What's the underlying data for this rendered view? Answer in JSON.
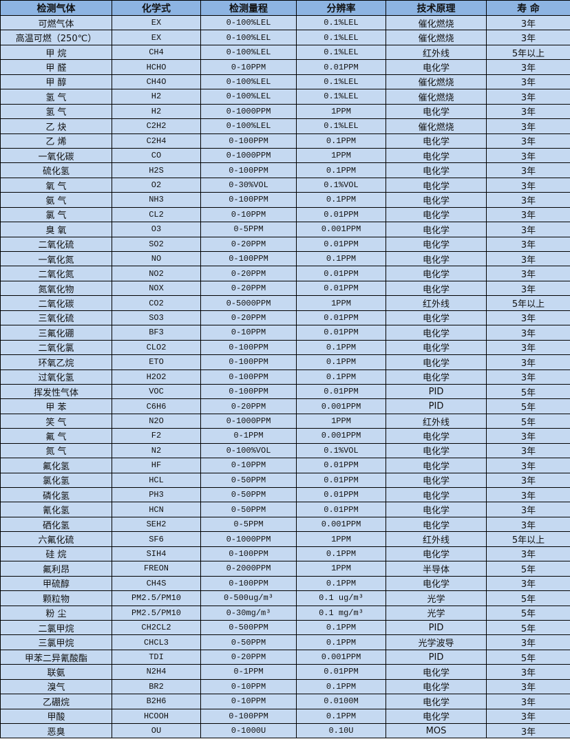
{
  "colors": {
    "header_bg": "#8db4e2",
    "row_bg": "#c5d9f1",
    "border": "#000000"
  },
  "table": {
    "headers": [
      "检测气体",
      "化学式",
      "检测量程",
      "分辨率",
      "技术原理",
      "寿 命"
    ],
    "rows": [
      [
        "可燃气体",
        "EX",
        "0-100%LEL",
        "0.1%LEL",
        "催化燃烧",
        "3年"
      ],
      [
        "高温可燃（250℃）",
        "EX",
        "0-100%LEL",
        "0.1%LEL",
        "催化燃烧",
        "3年"
      ],
      [
        "甲 烷",
        "CH4",
        "0-100%LEL",
        "0.1%LEL",
        "红外线",
        "5年以上"
      ],
      [
        "甲 醛",
        "HCHO",
        "0-10PPM",
        "0.01PPM",
        "电化学",
        "3年"
      ],
      [
        "甲 醇",
        "CH4O",
        "0-100%LEL",
        "0.1%LEL",
        "催化燃烧",
        "3年"
      ],
      [
        "氢 气",
        "H2",
        "0-100%LEL",
        "0.1%LEL",
        "催化燃烧",
        "3年"
      ],
      [
        "氢 气",
        "H2",
        "0-1000PPM",
        "1PPM",
        "电化学",
        "3年"
      ],
      [
        "乙 炔",
        "C2H2",
        "0-100%LEL",
        "0.1%LEL",
        "催化燃烧",
        "3年"
      ],
      [
        "乙 烯",
        "C2H4",
        "0-100PPM",
        "0.1PPM",
        "电化学",
        "3年"
      ],
      [
        "一氧化碳",
        "CO",
        "0-1000PPM",
        "1PPM",
        "电化学",
        "3年"
      ],
      [
        "硫化氢",
        "H2S",
        "0-100PPM",
        "0.1PPM",
        "电化学",
        "3年"
      ],
      [
        "氧 气",
        "O2",
        "0-30%VOL",
        "0.1%VOL",
        "电化学",
        "3年"
      ],
      [
        "氨 气",
        "NH3",
        "0-100PPM",
        "0.1PPM",
        "电化学",
        "3年"
      ],
      [
        "氯 气",
        "CL2",
        "0-10PPM",
        "0.01PPM",
        "电化学",
        "3年"
      ],
      [
        "臭 氧",
        "O3",
        "0-5PPM",
        "0.001PPM",
        "电化学",
        "3年"
      ],
      [
        "二氧化硫",
        "SO2",
        "0-20PPM",
        "0.01PPM",
        "电化学",
        "3年"
      ],
      [
        "一氧化氮",
        "NO",
        "0-100PPM",
        "0.1PPM",
        "电化学",
        "3年"
      ],
      [
        "二氧化氮",
        "NO2",
        "0-20PPM",
        "0.01PPM",
        "电化学",
        "3年"
      ],
      [
        "氮氧化物",
        "NOX",
        "0-20PPM",
        "0.01PPM",
        "电化学",
        "3年"
      ],
      [
        "二氧化碳",
        "CO2",
        "0-5000PPM",
        "1PPM",
        "红外线",
        "5年以上"
      ],
      [
        "三氧化硫",
        "SO3",
        "0-20PPM",
        "0.01PPM",
        "电化学",
        "3年"
      ],
      [
        "三氟化硼",
        "BF3",
        "0-10PPM",
        "0.01PPM",
        "电化学",
        "3年"
      ],
      [
        "二氧化氯",
        "CLO2",
        "0-100PPM",
        "0.1PPM",
        "电化学",
        "3年"
      ],
      [
        "环氧乙烷",
        "ETO",
        "0-100PPM",
        "0.1PPM",
        "电化学",
        "3年"
      ],
      [
        "过氧化氢",
        "H2O2",
        "0-100PPM",
        "0.1PPM",
        "电化学",
        "3年"
      ],
      [
        "挥发性气体",
        "VOC",
        "0-100PPM",
        "0.01PPM",
        "PID",
        "5年"
      ],
      [
        "甲 苯",
        "C6H6",
        "0-20PPM",
        "0.001PPM",
        "PID",
        "5年"
      ],
      [
        "笑 气",
        "N2O",
        "0-1000PPM",
        "1PPM",
        "红外线",
        "5年"
      ],
      [
        "氟 气",
        "F2",
        "0-1PPM",
        "0.001PPM",
        "电化学",
        "3年"
      ],
      [
        "氮 气",
        "N2",
        "0-100%VOL",
        "0.1%VOL",
        "电化学",
        "3年"
      ],
      [
        "氟化氢",
        "HF",
        "0-10PPM",
        "0.01PPM",
        "电化学",
        "3年"
      ],
      [
        "氯化氢",
        "HCL",
        "0-50PPM",
        "0.01PPM",
        "电化学",
        "3年"
      ],
      [
        "磷化氢",
        "PH3",
        "0-50PPM",
        "0.01PPM",
        "电化学",
        "3年"
      ],
      [
        "氰化氢",
        "HCN",
        "0-50PPM",
        "0.01PPM",
        "电化学",
        "3年"
      ],
      [
        "硒化氢",
        "SEH2",
        "0-5PPM",
        "0.001PPM",
        "电化学",
        "3年"
      ],
      [
        "六氟化硫",
        "SF6",
        "0-1000PPM",
        "1PPM",
        "红外线",
        "5年以上"
      ],
      [
        "硅 烷",
        "SIH4",
        "0-100PPM",
        "0.1PPM",
        "电化学",
        "3年"
      ],
      [
        "氟利昂",
        "FREON",
        "0-2000PPM",
        "1PPM",
        "半导体",
        "5年"
      ],
      [
        "甲硫醇",
        "CH4S",
        "0-100PPM",
        "0.1PPM",
        "电化学",
        "3年"
      ],
      [
        "颗粒物",
        "PM2.5/PM10",
        "0-500ug/m³",
        "0.1 ug/m³",
        "光学",
        "5年"
      ],
      [
        "粉 尘",
        "PM2.5/PM10",
        "0-30mg/m³",
        "0.1 mg/m³",
        "光学",
        "5年"
      ],
      [
        "二氯甲烷",
        "CH2CL2",
        "0-500PPM",
        "0.1PPM",
        "PID",
        "5年"
      ],
      [
        "三氯甲烷",
        "CHCL3",
        "0-50PPM",
        "0.1PPM",
        "光学波导",
        "3年"
      ],
      [
        "甲苯二异氰酸酯",
        "TDI",
        "0-20PPM",
        "0.001PPM",
        "PID",
        "5年"
      ],
      [
        "联氨",
        "N2H4",
        "0-1PPM",
        "0.01PPM",
        "电化学",
        "3年"
      ],
      [
        "溴气",
        "BR2",
        "0-10PPM",
        "0.1PPM",
        "电化学",
        "3年"
      ],
      [
        "乙硼烷",
        "B2H6",
        "0-10PPM",
        "0.0100M",
        "电化学",
        "3年"
      ],
      [
        "甲酸",
        "HCOOH",
        "0-100PPM",
        "0.1PPM",
        "电化学",
        "3年"
      ],
      [
        "恶臭",
        "OU",
        "0-1000U",
        "0.10U",
        "MOS",
        "3年"
      ]
    ]
  }
}
